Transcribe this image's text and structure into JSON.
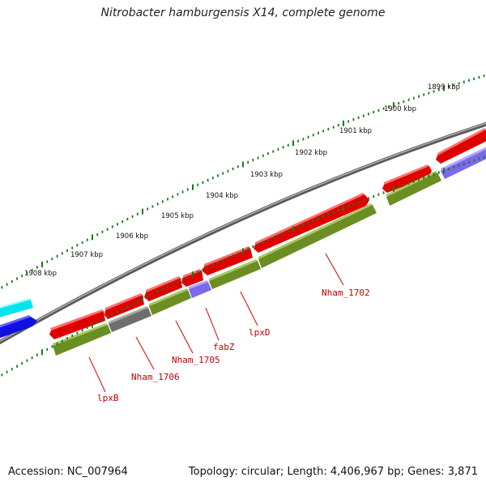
{
  "title": "Nitrobacter hamburgensis X14, complete genome",
  "footer": {
    "accession": "Accession: NC_007964",
    "summary": "Topology: circular; Length: 4,406,967 bp; Genes: 3,871"
  },
  "scale_labels": [
    "1899 kbp",
    "1900 kbp",
    "1901 kbp",
    "1902 kbp",
    "1903 kbp",
    "1904 kbp",
    "1905 kbp",
    "1906 kbp",
    "1907 kbp",
    "1908 kbp"
  ],
  "gene_labels": [
    "Nham_1702",
    "lpxD",
    "fabZ",
    "Nham_1705",
    "Nham_1706",
    "lpxB"
  ],
  "colors": {
    "backbone": "#808080",
    "forward_strand": "#e00000",
    "reverse_cds": "#6b8e23",
    "reverse_gray": "#6e6e6e",
    "reverse_purple": "#7b68ee",
    "cyan_feature": "#00e5ee",
    "blue_feature": "#1010e0",
    "tick": "#1a7a1a",
    "label_line": "#dd0000"
  }
}
